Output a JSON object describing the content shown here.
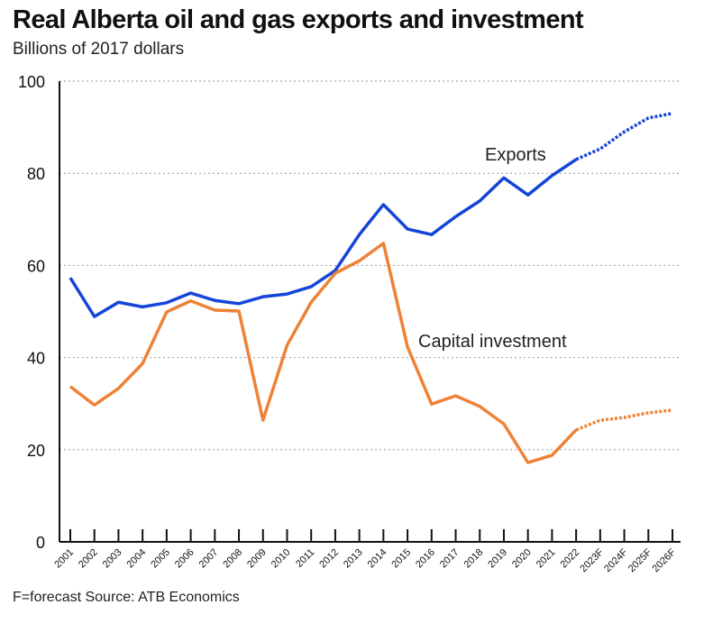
{
  "title": "Real Alberta oil and gas exports and investment",
  "subtitle": "Billions of 2017 dollars",
  "footer": "F=forecast  Source: ATB Economics",
  "chart_data": {
    "type": "line",
    "categories": [
      "2001",
      "2002",
      "2003",
      "2004",
      "2005",
      "2006",
      "2007",
      "2008",
      "2009",
      "2010",
      "2011",
      "2012",
      "2013",
      "2014",
      "2015",
      "2016",
      "2017",
      "2018",
      "2019",
      "2020",
      "2021",
      "2022",
      "2023F",
      "2024F",
      "2025F",
      "2026F"
    ],
    "forecast_start": "2022",
    "ylim": [
      0,
      100
    ],
    "yticks": [
      0,
      20,
      40,
      60,
      80,
      100
    ],
    "grid": true,
    "series": [
      {
        "name": "Exports",
        "color": "#1545d8",
        "values": [
          57.3,
          48.9,
          52,
          51,
          51.9,
          54,
          52.4,
          51.7,
          53.2,
          53.8,
          55.4,
          58.9,
          66.7,
          73.2,
          67.9,
          66.7,
          70.6,
          74,
          79,
          75.3,
          79.5,
          83,
          85.3,
          89,
          92,
          93
        ]
      },
      {
        "name": "Capital investment",
        "color": "#ee8237",
        "values": [
          33.7,
          29.7,
          33.3,
          38.7,
          49.9,
          52.3,
          50.3,
          50.1,
          26.4,
          42.7,
          52,
          58.3,
          61,
          64.8,
          42.3,
          29.9,
          31.7,
          29.4,
          25.6,
          17.2,
          18.8,
          24.3,
          26.4,
          27,
          28,
          28.6
        ]
      }
    ]
  }
}
